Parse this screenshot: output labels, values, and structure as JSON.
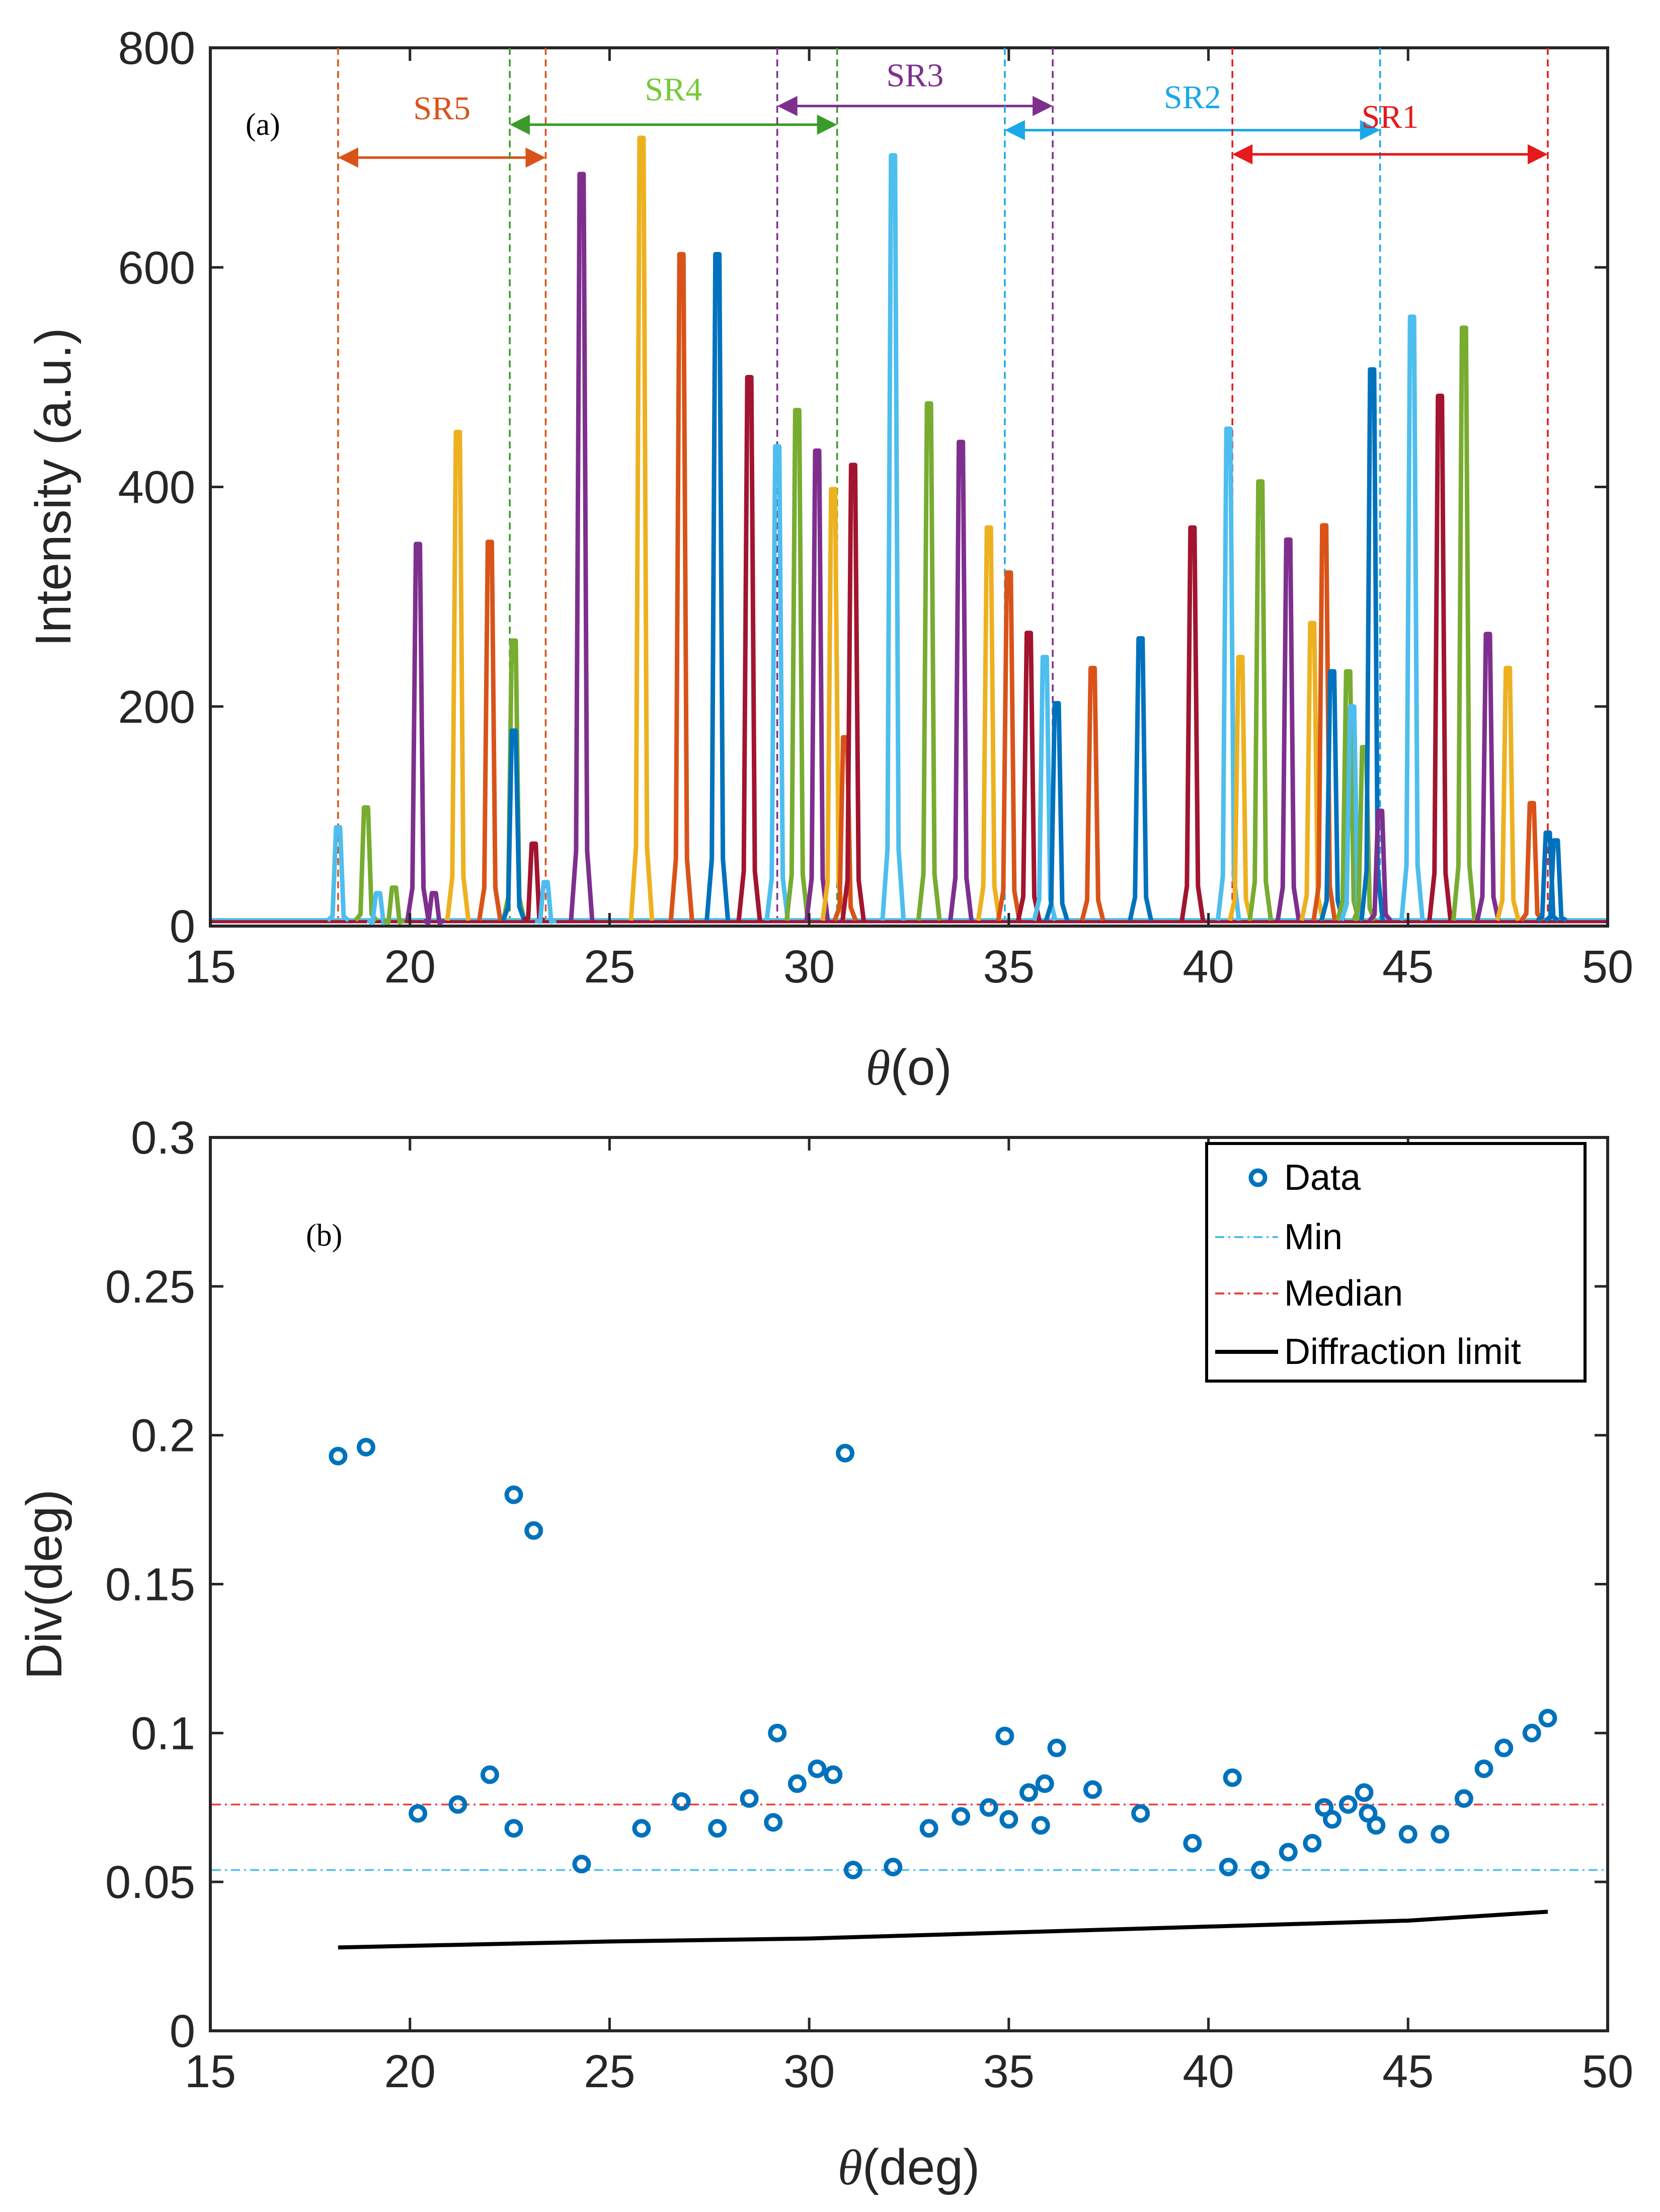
{
  "figure": {
    "panel_a_tag": "(a)",
    "panel_b_tag": "(b)"
  },
  "colors": {
    "text": "#262626",
    "peak_palette": [
      "#0072BD",
      "#D95319",
      "#EDB120",
      "#7E2F8E",
      "#77AC30",
      "#4DBEEE",
      "#A2142F"
    ],
    "min_line": "#4DBEEE",
    "median_line": "#E8403C",
    "diffraction_line": "#000000",
    "data_marker": "#0072BD"
  },
  "chart_data": [
    {
      "id": "a",
      "type": "line",
      "title": "",
      "xlabel_symbol": "θ",
      "xlabel_rest": "(o)",
      "ylabel": "Intensity (a.u.)",
      "xlim": [
        15,
        50
      ],
      "ylim": [
        0,
        800
      ],
      "x_ticks": [
        "15",
        "20",
        "25",
        "30",
        "35",
        "40",
        "45",
        "50"
      ],
      "y_ticks": [
        "0",
        "200",
        "400",
        "600",
        "800"
      ],
      "grid": false,
      "peaks": [
        {
          "x": 18.2,
          "y": 90,
          "color": "#4DBEEE"
        },
        {
          "x": 18.9,
          "y": 108,
          "color": "#77AC30"
        },
        {
          "x": 19.2,
          "y": 30,
          "color": "#4DBEEE"
        },
        {
          "x": 19.6,
          "y": 35,
          "color": "#77AC30"
        },
        {
          "x": 20.2,
          "y": 348,
          "color": "#7E2F8E"
        },
        {
          "x": 20.6,
          "y": 30,
          "color": "#7E2F8E"
        },
        {
          "x": 21.2,
          "y": 450,
          "color": "#EDB120"
        },
        {
          "x": 22.0,
          "y": 350,
          "color": "#D95319"
        },
        {
          "x": 22.6,
          "y": 260,
          "color": "#77AC30"
        },
        {
          "x": 22.6,
          "y": 178,
          "color": "#0072BD"
        },
        {
          "x": 23.1,
          "y": 75,
          "color": "#A2142F"
        },
        {
          "x": 23.4,
          "y": 40,
          "color": "#4DBEEE"
        },
        {
          "x": 24.3,
          "y": 685,
          "color": "#7E2F8E"
        },
        {
          "x": 25.8,
          "y": 718,
          "color": "#EDB120"
        },
        {
          "x": 26.8,
          "y": 612,
          "color": "#D95319"
        },
        {
          "x": 27.7,
          "y": 612,
          "color": "#0072BD"
        },
        {
          "x": 28.5,
          "y": 500,
          "color": "#A2142F"
        },
        {
          "x": 29.2,
          "y": 437,
          "color": "#4DBEEE"
        },
        {
          "x": 29.7,
          "y": 470,
          "color": "#77AC30"
        },
        {
          "x": 30.2,
          "y": 433,
          "color": "#7E2F8E"
        },
        {
          "x": 30.6,
          "y": 398,
          "color": "#EDB120"
        },
        {
          "x": 30.9,
          "y": 172,
          "color": "#D95319"
        },
        {
          "x": 31.1,
          "y": 420,
          "color": "#A2142F"
        },
        {
          "x": 32.1,
          "y": 702,
          "color": "#4DBEEE"
        },
        {
          "x": 33.0,
          "y": 476,
          "color": "#77AC30"
        },
        {
          "x": 33.8,
          "y": 441,
          "color": "#7E2F8E"
        },
        {
          "x": 34.5,
          "y": 363,
          "color": "#EDB120"
        },
        {
          "x": 35.0,
          "y": 322,
          "color": "#D95319"
        },
        {
          "x": 35.5,
          "y": 267,
          "color": "#A2142F"
        },
        {
          "x": 35.9,
          "y": 245,
          "color": "#4DBEEE"
        },
        {
          "x": 36.2,
          "y": 203,
          "color": "#0072BD"
        },
        {
          "x": 37.1,
          "y": 235,
          "color": "#D95319"
        },
        {
          "x": 38.3,
          "y": 262,
          "color": "#0072BD"
        },
        {
          "x": 39.6,
          "y": 363,
          "color": "#A2142F"
        },
        {
          "x": 40.5,
          "y": 453,
          "color": "#4DBEEE"
        },
        {
          "x": 40.8,
          "y": 245,
          "color": "#EDB120"
        },
        {
          "x": 41.3,
          "y": 405,
          "color": "#77AC30"
        },
        {
          "x": 42.0,
          "y": 352,
          "color": "#7E2F8E"
        },
        {
          "x": 42.6,
          "y": 276,
          "color": "#EDB120"
        },
        {
          "x": 42.9,
          "y": 365,
          "color": "#D95319"
        },
        {
          "x": 43.1,
          "y": 232,
          "color": "#0072BD"
        },
        {
          "x": 43.5,
          "y": 232,
          "color": "#77AC30"
        },
        {
          "x": 43.6,
          "y": 200,
          "color": "#4DBEEE"
        },
        {
          "x": 43.9,
          "y": 163,
          "color": "#77AC30"
        },
        {
          "x": 44.1,
          "y": 507,
          "color": "#0072BD"
        },
        {
          "x": 44.3,
          "y": 105,
          "color": "#7E2F8E"
        },
        {
          "x": 45.1,
          "y": 555,
          "color": "#4DBEEE"
        },
        {
          "x": 45.8,
          "y": 483,
          "color": "#A2142F"
        },
        {
          "x": 46.4,
          "y": 545,
          "color": "#77AC30"
        },
        {
          "x": 47.0,
          "y": 266,
          "color": "#7E2F8E"
        },
        {
          "x": 47.5,
          "y": 235,
          "color": "#EDB120"
        },
        {
          "x": 48.1,
          "y": 112,
          "color": "#D95319"
        },
        {
          "x": 48.5,
          "y": 85,
          "color": "#0072BD"
        },
        {
          "x": 48.7,
          "y": 78,
          "color": "#0072BD"
        }
      ],
      "regions": [
        {
          "label": "SR5",
          "x1": 18.2,
          "x2": 23.4,
          "arrow_y": 700,
          "label_y": 735,
          "color": "#D95319",
          "label_color": "#D95319"
        },
        {
          "label": "SR4",
          "x1": 22.5,
          "x2": 30.7,
          "arrow_y": 730,
          "label_y": 752,
          "color": "#3A9B2A",
          "label_color": "#77C93A"
        },
        {
          "label": "SR3",
          "x1": 29.2,
          "x2": 36.1,
          "arrow_y": 747,
          "label_y": 765,
          "color": "#7E2F8E",
          "label_color": "#7E2F8E"
        },
        {
          "label": "SR2",
          "x1": 34.9,
          "x2": 44.3,
          "arrow_y": 725,
          "label_y": 745,
          "color": "#1BA8E6",
          "label_color": "#1BA8E6"
        },
        {
          "label": "SR1",
          "x1": 40.6,
          "x2": 48.5,
          "arrow_y": 703,
          "label_y": 727,
          "color": "#E41A1C",
          "label_color": "#E41A1C"
        }
      ]
    },
    {
      "id": "b",
      "type": "scatter",
      "title": "",
      "xlabel_symbol": "θ",
      "xlabel_rest": "(deg)",
      "ylabel": "Div(deg)",
      "xlim": [
        15,
        50
      ],
      "ylim": [
        0,
        0.3
      ],
      "x_ticks": [
        "15",
        "20",
        "25",
        "30",
        "35",
        "40",
        "45",
        "50"
      ],
      "y_ticks": [
        "0",
        "0.05",
        "0.1",
        "0.15",
        "0.2",
        "0.25",
        "0.3"
      ],
      "grid": false,
      "legend_placement": "top-right",
      "legend": [
        "Data",
        "Min",
        "Median",
        "Diffraction limit"
      ],
      "series": [
        {
          "name": "Data",
          "points": [
            [
              18.2,
              0.193
            ],
            [
              18.9,
              0.196
            ],
            [
              20.2,
              0.073
            ],
            [
              21.2,
              0.076
            ],
            [
              22.0,
              0.086
            ],
            [
              22.6,
              0.068
            ],
            [
              22.6,
              0.18
            ],
            [
              23.1,
              0.168
            ],
            [
              24.3,
              0.056
            ],
            [
              25.8,
              0.068
            ],
            [
              26.8,
              0.077
            ],
            [
              27.7,
              0.068
            ],
            [
              28.5,
              0.078
            ],
            [
              29.1,
              0.07
            ],
            [
              29.2,
              0.1
            ],
            [
              29.7,
              0.083
            ],
            [
              30.2,
              0.088
            ],
            [
              30.6,
              0.086
            ],
            [
              30.9,
              0.194
            ],
            [
              31.1,
              0.054
            ],
            [
              32.1,
              0.055
            ],
            [
              33.0,
              0.068
            ],
            [
              33.8,
              0.072
            ],
            [
              34.5,
              0.075
            ],
            [
              34.9,
              0.099
            ],
            [
              35.0,
              0.071
            ],
            [
              35.5,
              0.08
            ],
            [
              35.8,
              0.069
            ],
            [
              35.9,
              0.083
            ],
            [
              36.2,
              0.095
            ],
            [
              37.1,
              0.081
            ],
            [
              38.3,
              0.073
            ],
            [
              39.6,
              0.063
            ],
            [
              40.5,
              0.055
            ],
            [
              40.6,
              0.085
            ],
            [
              41.3,
              0.054
            ],
            [
              42.0,
              0.06
            ],
            [
              42.6,
              0.063
            ],
            [
              42.9,
              0.075
            ],
            [
              43.1,
              0.071
            ],
            [
              43.5,
              0.076
            ],
            [
              43.9,
              0.08
            ],
            [
              44.0,
              0.073
            ],
            [
              44.2,
              0.069
            ],
            [
              45.0,
              0.066
            ],
            [
              45.8,
              0.066
            ],
            [
              46.4,
              0.078
            ],
            [
              46.9,
              0.088
            ],
            [
              47.4,
              0.095
            ],
            [
              48.1,
              0.1
            ],
            [
              48.5,
              0.105
            ]
          ]
        },
        {
          "name": "Min",
          "y": 0.054
        },
        {
          "name": "Median",
          "y": 0.076
        },
        {
          "name": "Diffraction limit",
          "points": [
            [
              18.2,
              0.028
            ],
            [
              25.0,
              0.03
            ],
            [
              30.0,
              0.031
            ],
            [
              35.0,
              0.033
            ],
            [
              40.0,
              0.035
            ],
            [
              45.0,
              0.037
            ],
            [
              48.5,
              0.04
            ]
          ]
        }
      ]
    }
  ]
}
